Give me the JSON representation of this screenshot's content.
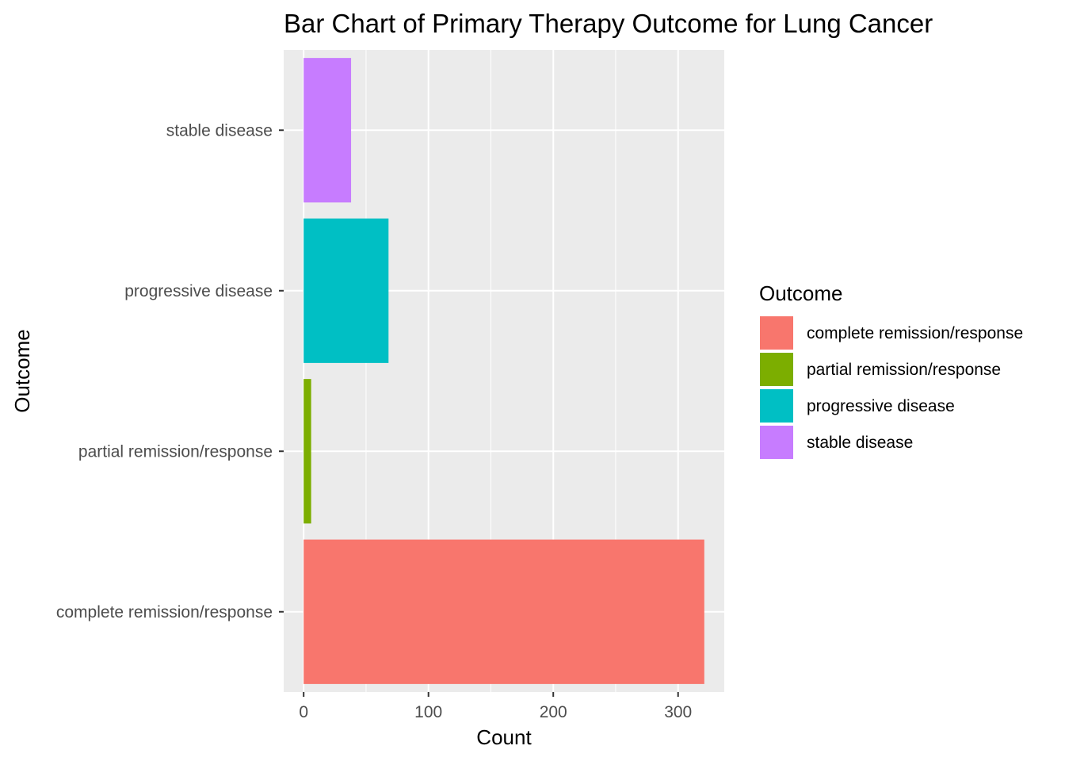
{
  "chart_data": {
    "type": "bar",
    "orientation": "horizontal",
    "title": "Bar Chart of Primary Therapy Outcome for Lung Cancer",
    "xlabel": "Count",
    "ylabel": "Outcome",
    "categories": [
      "complete remission/response",
      "partial remission/response",
      "progressive disease",
      "stable disease"
    ],
    "values": [
      321,
      6,
      68,
      38
    ],
    "colors": [
      "#F8766D",
      "#7CAE00",
      "#00BFC4",
      "#C77CFF"
    ],
    "xlim": [
      -16,
      337
    ],
    "x_ticks": [
      0,
      100,
      200,
      300
    ],
    "x_tick_labels": [
      "0",
      "100",
      "200",
      "300"
    ],
    "grid": true,
    "legend": {
      "title": "Outcome",
      "position": "right",
      "items": [
        "complete remission/response",
        "partial remission/response",
        "progressive disease",
        "stable disease"
      ]
    }
  }
}
